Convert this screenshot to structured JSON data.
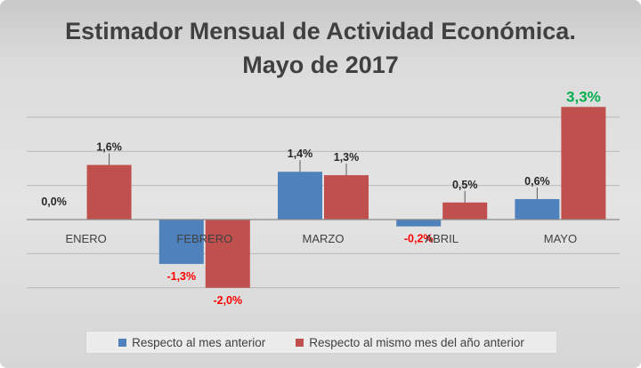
{
  "title": {
    "line1": "Estimador Mensual de Actividad Económica.",
    "line2": "Mayo de 2017"
  },
  "colors": {
    "series1": "#4f81bd",
    "series2": "#c0504d",
    "negative_label": "#ff0000",
    "highlight_label": "#00b050",
    "default_label": "#262626"
  },
  "chart_data": {
    "type": "bar",
    "categories": [
      "ENERO",
      "FEBRERO",
      "MARZO",
      "ABRIL",
      "MAYO"
    ],
    "series": [
      {
        "name": "Respecto al mes anterior",
        "values": [
          0.0,
          -1.3,
          1.4,
          -0.2,
          0.6
        ],
        "labels": [
          "0,0%",
          "-1,3%",
          "1,4%",
          "-0,2%",
          "0,6%"
        ]
      },
      {
        "name": "Respecto al mismo mes del año anterior",
        "values": [
          1.6,
          -2.0,
          1.3,
          0.5,
          3.3
        ],
        "labels": [
          "1,6%",
          "-2,0%",
          "1,3%",
          "0,5%",
          "3,3%"
        ]
      }
    ],
    "highlight": {
      "series": 1,
      "index": 4
    },
    "ylim": [
      -2.0,
      3.3
    ],
    "gridlines": true,
    "legend": "bottom"
  }
}
